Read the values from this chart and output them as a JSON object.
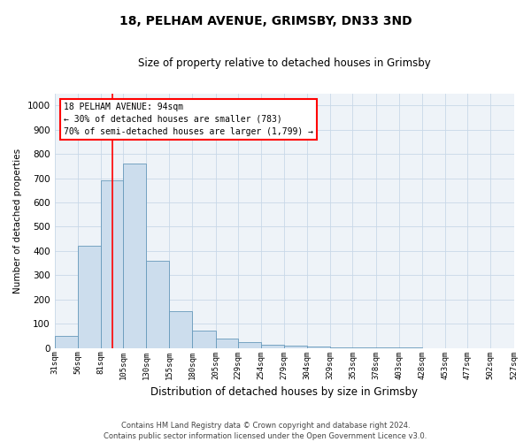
{
  "title": "18, PELHAM AVENUE, GRIMSBY, DN33 3ND",
  "subtitle": "Size of property relative to detached houses in Grimsby",
  "xlabel": "Distribution of detached houses by size in Grimsby",
  "ylabel": "Number of detached properties",
  "bar_values": [
    50,
    420,
    690,
    760,
    360,
    150,
    70,
    38,
    25,
    15,
    8,
    5,
    3,
    2,
    1,
    1,
    0,
    0,
    0,
    0
  ],
  "bin_labels": [
    "31sqm",
    "56sqm",
    "81sqm",
    "105sqm",
    "130sqm",
    "155sqm",
    "180sqm",
    "205sqm",
    "229sqm",
    "254sqm",
    "279sqm",
    "304sqm",
    "329sqm",
    "353sqm",
    "378sqm",
    "403sqm",
    "428sqm",
    "453sqm",
    "477sqm",
    "502sqm",
    "527sqm"
  ],
  "bin_edges": [
    31,
    56,
    81,
    105,
    130,
    155,
    180,
    205,
    229,
    254,
    279,
    304,
    329,
    353,
    378,
    403,
    428,
    453,
    477,
    502,
    527
  ],
  "bar_color": "#ccdded",
  "bar_edge_color": "#6699bb",
  "red_line_x": 94,
  "ylim": [
    0,
    1050
  ],
  "yticks": [
    0,
    100,
    200,
    300,
    400,
    500,
    600,
    700,
    800,
    900,
    1000
  ],
  "annotation_line1": "18 PELHAM AVENUE: 94sqm",
  "annotation_line2": "← 30% of detached houses are smaller (783)",
  "annotation_line3": "70% of semi-detached houses are larger (1,799) →",
  "footer_line1": "Contains HM Land Registry data © Crown copyright and database right 2024.",
  "footer_line2": "Contains public sector information licensed under the Open Government Licence v3.0.",
  "plot_bg_color": "#eef3f8",
  "fig_bg_color": "#ffffff",
  "grid_color": "#c8d8e8"
}
